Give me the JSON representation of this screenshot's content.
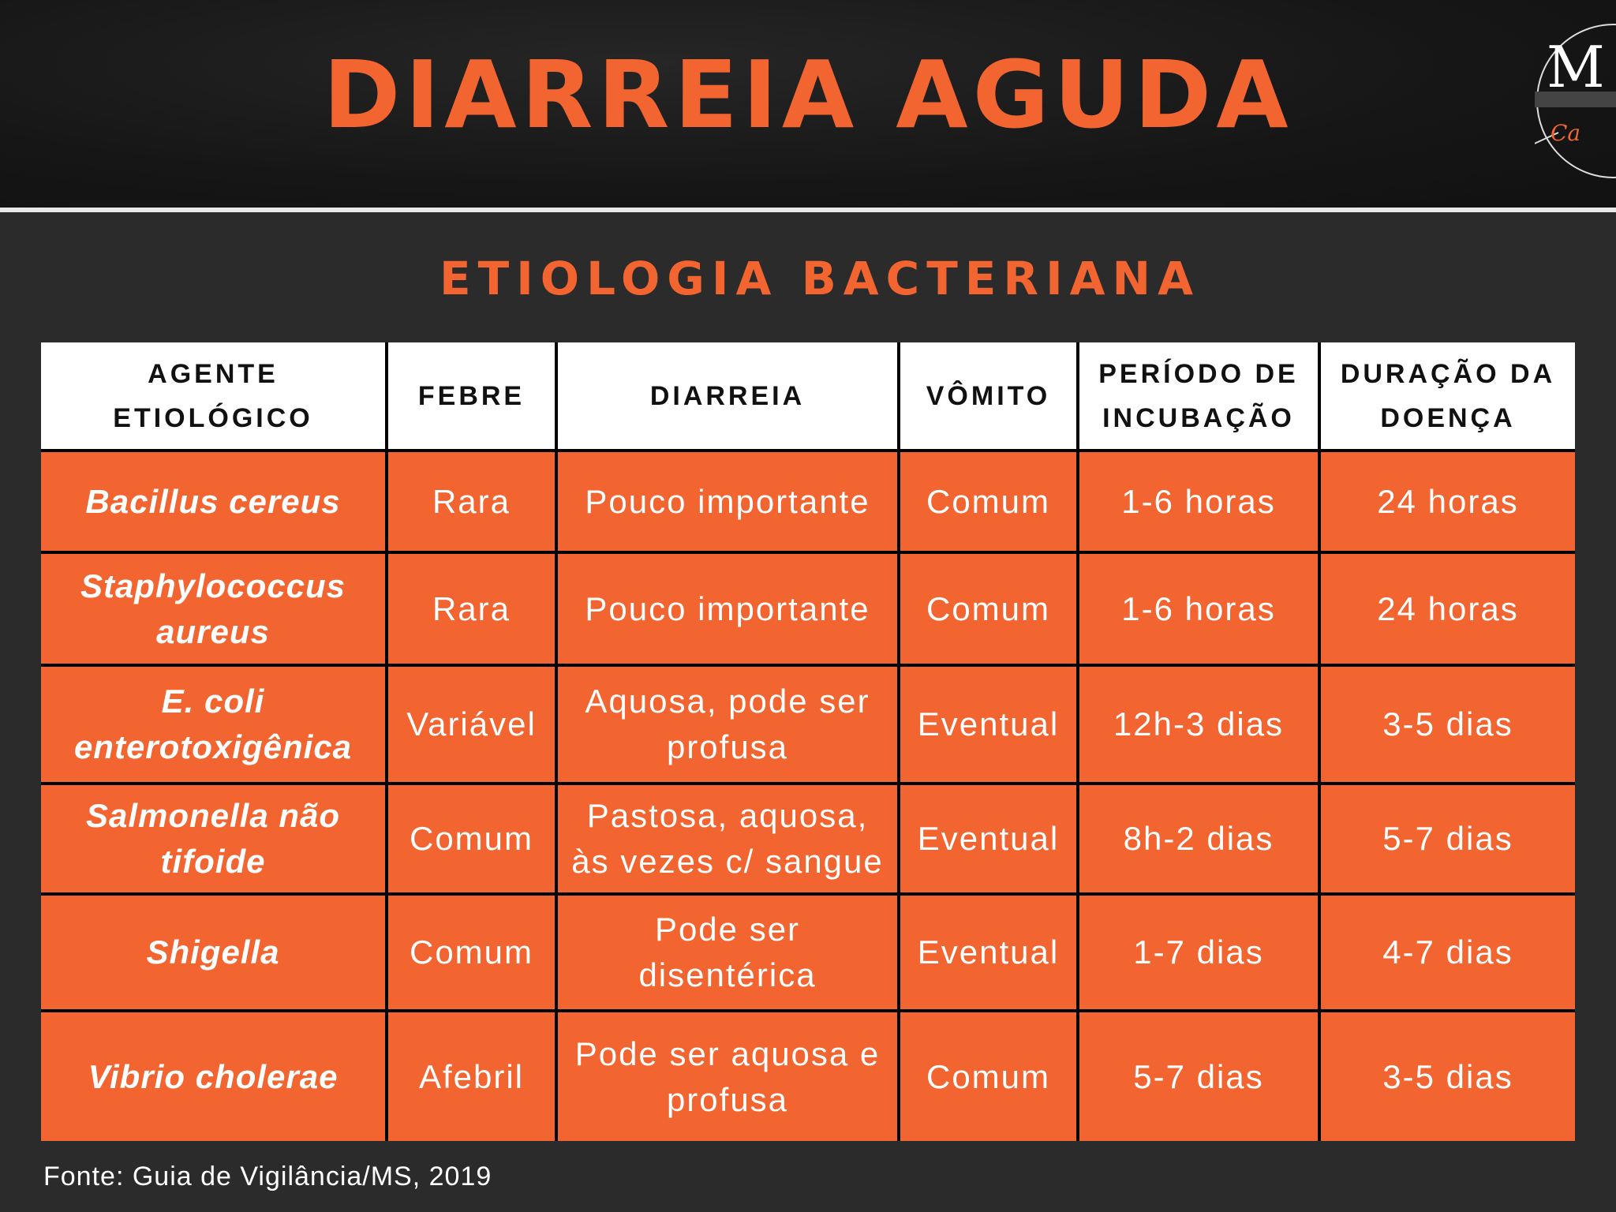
{
  "title": "DIARREIA AGUDA",
  "subtitle": "ETIOLOGIA BACTERIANA",
  "colors": {
    "accent": "#f26430",
    "background": "#2b2b2b",
    "header_bg": "#161616"
  },
  "logo": {
    "letter": "M",
    "script": "Ca"
  },
  "table": {
    "headers": [
      "AGENTE ETIOLÓGICO",
      "FEBRE",
      "DIARREIA",
      "VÔMITO",
      "PERÍODO DE INCUBAÇÃO",
      "DURAÇÃO DA DOENÇA"
    ],
    "rows": [
      [
        "Bacillus cereus",
        "Rara",
        "Pouco importante",
        "Comum",
        "1-6 horas",
        "24 horas"
      ],
      [
        "Staphylococcus aureus",
        "Rara",
        "Pouco importante",
        "Comum",
        "1-6 horas",
        "24 horas"
      ],
      [
        "E. coli enterotoxigênica",
        "Variável",
        "Aquosa, pode ser profusa",
        "Eventual",
        "12h-3 dias",
        "3-5 dias"
      ],
      [
        "Salmonella não tifoide",
        "Comum",
        "Pastosa, aquosa, às vezes c/ sangue",
        "Eventual",
        "8h-2 dias",
        "5-7 dias"
      ],
      [
        "Shigella",
        "Comum",
        "Pode ser disentérica",
        "Eventual",
        "1-7 dias",
        "4-7 dias"
      ],
      [
        "Vibrio cholerae",
        "Afebril",
        "Pode ser aquosa e profusa",
        "Comum",
        "5-7 dias",
        "3-5 dias"
      ]
    ]
  },
  "footer": "Fonte: Guia de Vigilância/MS, 2019"
}
